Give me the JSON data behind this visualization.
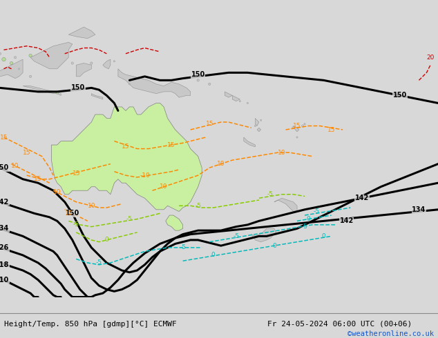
{
  "title_left": "Height/Temp. 850 hPa [gdmp][°C] ECMWF",
  "title_right": "Fr 24-05-2024 06:00 UTC (00+06)",
  "credit": "©weatheronline.co.uk",
  "bg_color": "#d8d8d8",
  "ocean_color": "#d8d8d8",
  "land_color": "#c8c8c8",
  "australia_color": "#c8f0a0",
  "fig_width": 6.34,
  "fig_height": 4.9,
  "dpi": 100,
  "bottom_bar_color": "#e0e0e0",
  "font_size_title": 8.0,
  "font_size_credit": 7.5,
  "credit_color": "#1155cc",
  "xlim": [
    100,
    215
  ],
  "ylim": [
    -62,
    12
  ]
}
